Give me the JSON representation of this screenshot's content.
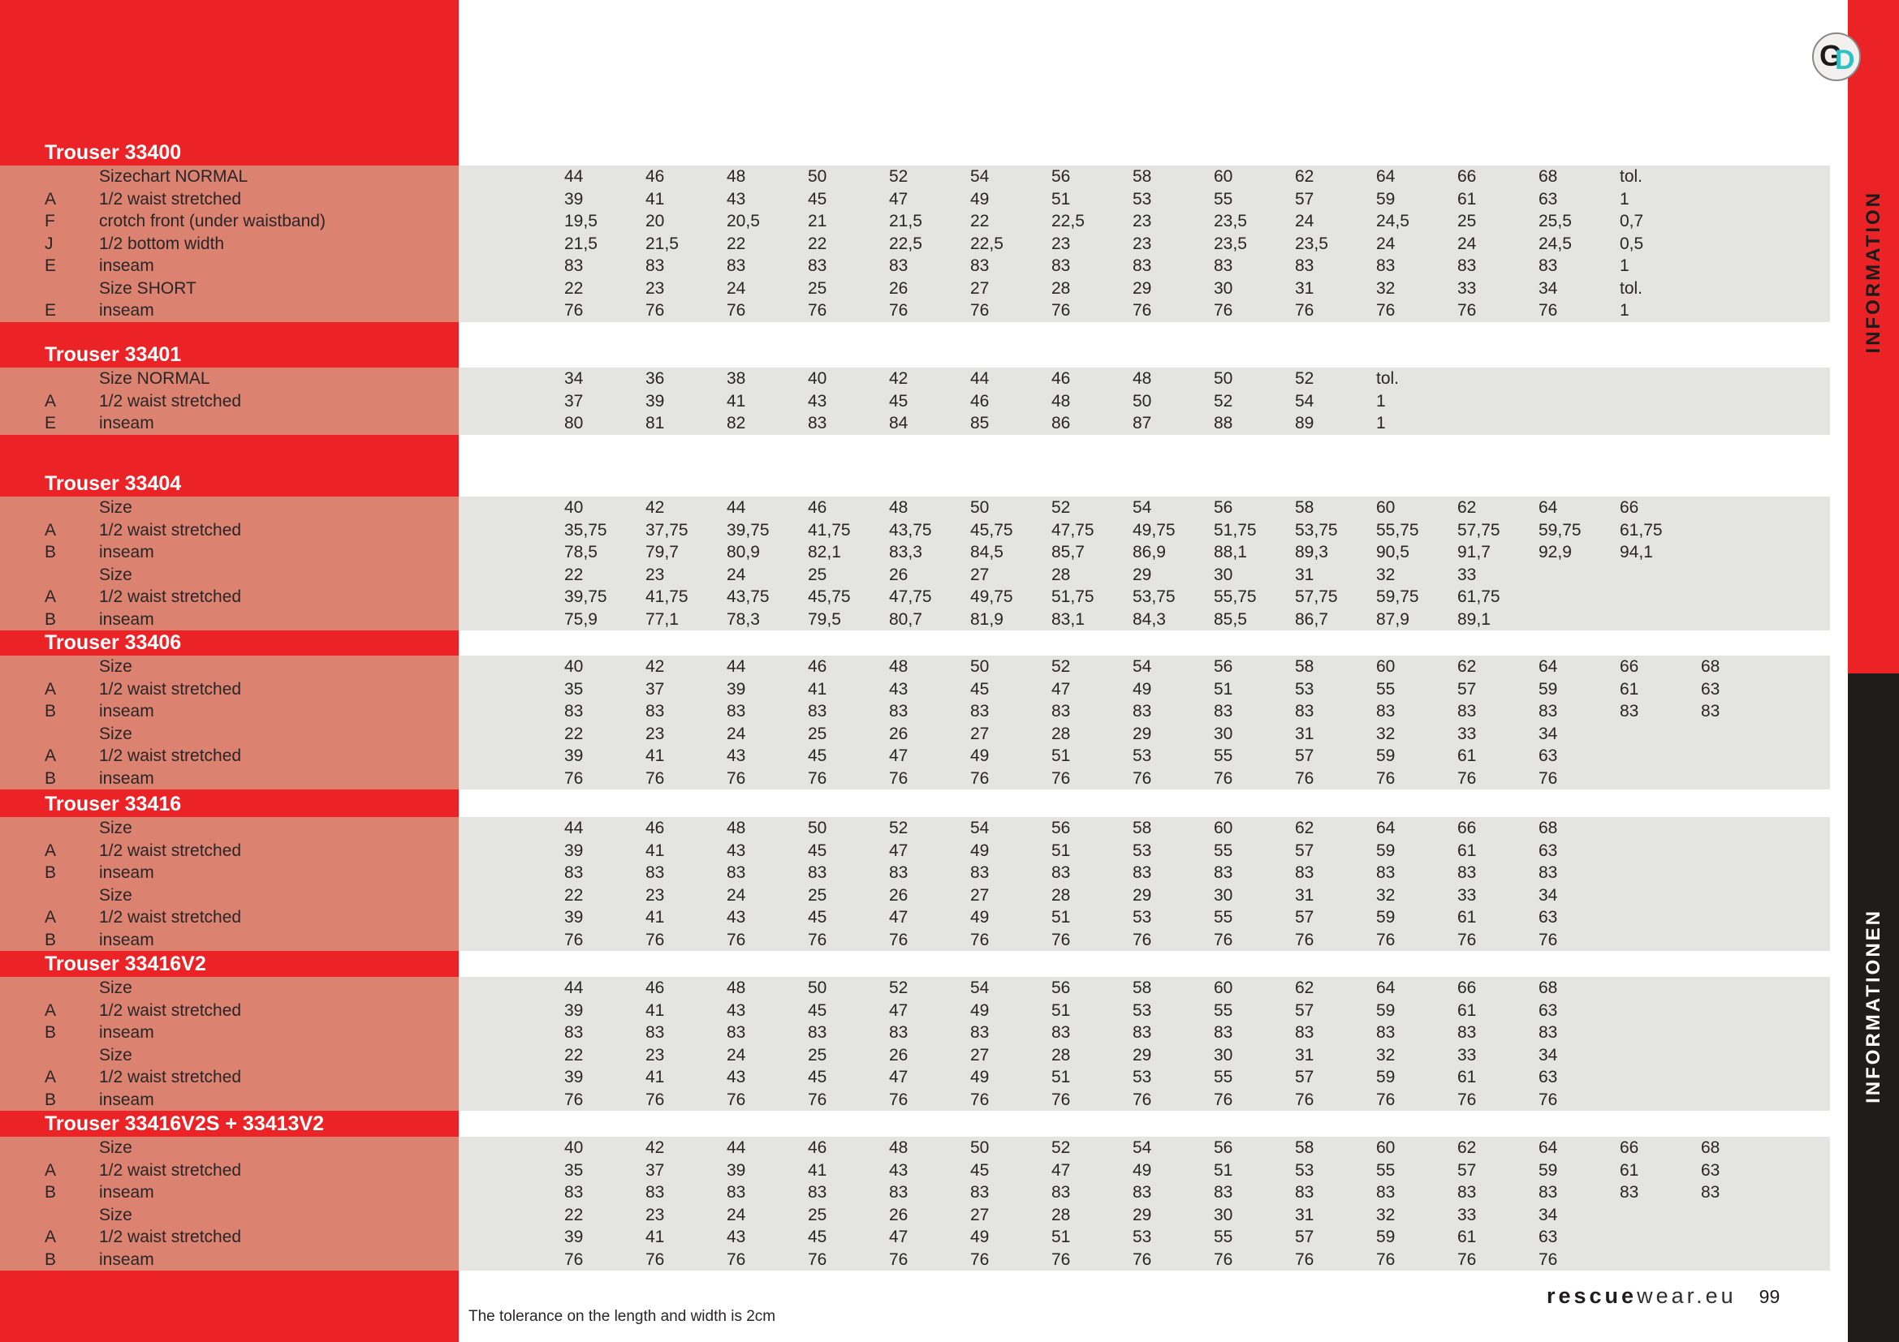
{
  "logo": {
    "letter_g": "G",
    "letter_d": "D"
  },
  "sidebar": {
    "red_label": "INFORMATION",
    "black_label": "INFORMATIONEN"
  },
  "footer": {
    "note": "The tolerance on the length and width is 2cm",
    "brand_bold": "rescue",
    "brand_light": "wear.eu",
    "page_number": "99"
  },
  "colors": {
    "red": "#ec2326",
    "salmon": "#db8271",
    "gray_band": "#e4e4e2",
    "black_bar": "#211c1c",
    "logo_teal": "#2fc2c4"
  },
  "sections": [
    {
      "id": "33400",
      "title": "Trouser 33400",
      "rows": [
        {
          "key": "",
          "label": "Sizechart NORMAL",
          "values": [
            "44",
            "46",
            "48",
            "50",
            "52",
            "54",
            "56",
            "58",
            "60",
            "62",
            "64",
            "66",
            "68",
            "tol."
          ]
        },
        {
          "key": "A",
          "label": "1/2 waist stretched",
          "values": [
            "39",
            "41",
            "43",
            "45",
            "47",
            "49",
            "51",
            "53",
            "55",
            "57",
            "59",
            "61",
            "63",
            "1"
          ]
        },
        {
          "key": "F",
          "label": "crotch front (under waistband)",
          "values": [
            "19,5",
            "20",
            "20,5",
            "21",
            "21,5",
            "22",
            "22,5",
            "23",
            "23,5",
            "24",
            "24,5",
            "25",
            "25,5",
            "0,7"
          ]
        },
        {
          "key": "J",
          "label": "1/2 bottom width",
          "values": [
            "21,5",
            "21,5",
            "22",
            "22",
            "22,5",
            "22,5",
            "23",
            "23",
            "23,5",
            "23,5",
            "24",
            "24",
            "24,5",
            "0,5"
          ]
        },
        {
          "key": "E",
          "label": "inseam",
          "values": [
            "83",
            "83",
            "83",
            "83",
            "83",
            "83",
            "83",
            "83",
            "83",
            "83",
            "83",
            "83",
            "83",
            "1"
          ]
        },
        {
          "key": "",
          "label": "Size SHORT",
          "values": [
            "22",
            "23",
            "24",
            "25",
            "26",
            "27",
            "28",
            "29",
            "30",
            "31",
            "32",
            "33",
            "34",
            "tol."
          ]
        },
        {
          "key": "E",
          "label": "inseam",
          "values": [
            "76",
            "76",
            "76",
            "76",
            "76",
            "76",
            "76",
            "76",
            "76",
            "76",
            "76",
            "76",
            "76",
            "1"
          ]
        }
      ]
    },
    {
      "id": "33401",
      "title": "Trouser 33401",
      "rows": [
        {
          "key": "",
          "label": "Size NORMAL",
          "values": [
            "34",
            "36",
            "38",
            "40",
            "42",
            "44",
            "46",
            "48",
            "50",
            "52",
            "tol."
          ]
        },
        {
          "key": "A",
          "label": "1/2 waist stretched",
          "values": [
            "37",
            "39",
            "41",
            "43",
            "45",
            "46",
            "48",
            "50",
            "52",
            "54",
            "1"
          ]
        },
        {
          "key": "E",
          "label": "inseam",
          "values": [
            "80",
            "81",
            "82",
            "83",
            "84",
            "85",
            "86",
            "87",
            "88",
            "89",
            "1"
          ]
        }
      ]
    },
    {
      "id": "33404",
      "title": "Trouser 33404",
      "rows": [
        {
          "key": "",
          "label": "Size",
          "values": [
            "40",
            "42",
            "44",
            "46",
            "48",
            "50",
            "52",
            "54",
            "56",
            "58",
            "60",
            "62",
            "64",
            "66"
          ]
        },
        {
          "key": "A",
          "label": "1/2 waist stretched",
          "values": [
            "35,75",
            "37,75",
            "39,75",
            "41,75",
            "43,75",
            "45,75",
            "47,75",
            "49,75",
            "51,75",
            "53,75",
            "55,75",
            "57,75",
            "59,75",
            "61,75"
          ]
        },
        {
          "key": "B",
          "label": "inseam",
          "values": [
            "78,5",
            "79,7",
            "80,9",
            "82,1",
            "83,3",
            "84,5",
            "85,7",
            "86,9",
            "88,1",
            "89,3",
            "90,5",
            "91,7",
            "92,9",
            "94,1"
          ]
        },
        {
          "key": "",
          "label": "Size",
          "values": [
            "22",
            "23",
            "24",
            "25",
            "26",
            "27",
            "28",
            "29",
            "30",
            "31",
            "32",
            "33"
          ]
        },
        {
          "key": "A",
          "label": "1/2 waist stretched",
          "values": [
            "39,75",
            "41,75",
            "43,75",
            "45,75",
            "47,75",
            "49,75",
            "51,75",
            "53,75",
            "55,75",
            "57,75",
            "59,75",
            "61,75"
          ]
        },
        {
          "key": "B",
          "label": "inseam",
          "values": [
            "75,9",
            "77,1",
            "78,3",
            "79,5",
            "80,7",
            "81,9",
            "83,1",
            "84,3",
            "85,5",
            "86,7",
            "87,9",
            "89,1"
          ]
        }
      ]
    },
    {
      "id": "33406",
      "title": "Trouser 33406",
      "rows": [
        {
          "key": "",
          "label": "Size",
          "values": [
            "40",
            "42",
            "44",
            "46",
            "48",
            "50",
            "52",
            "54",
            "56",
            "58",
            "60",
            "62",
            "64",
            "66",
            "68"
          ]
        },
        {
          "key": "A",
          "label": "1/2 waist stretched",
          "values": [
            "35",
            "37",
            "39",
            "41",
            "43",
            "45",
            "47",
            "49",
            "51",
            "53",
            "55",
            "57",
            "59",
            "61",
            "63"
          ]
        },
        {
          "key": "B",
          "label": "inseam",
          "values": [
            "83",
            "83",
            "83",
            "83",
            "83",
            "83",
            "83",
            "83",
            "83",
            "83",
            "83",
            "83",
            "83",
            "83",
            "83"
          ]
        },
        {
          "key": "",
          "label": "Size",
          "values": [
            "22",
            "23",
            "24",
            "25",
            "26",
            "27",
            "28",
            "29",
            "30",
            "31",
            "32",
            "33",
            "34"
          ]
        },
        {
          "key": "A",
          "label": "1/2 waist stretched",
          "values": [
            "39",
            "41",
            "43",
            "45",
            "47",
            "49",
            "51",
            "53",
            "55",
            "57",
            "59",
            "61",
            "63"
          ]
        },
        {
          "key": "B",
          "label": "inseam",
          "values": [
            "76",
            "76",
            "76",
            "76",
            "76",
            "76",
            "76",
            "76",
            "76",
            "76",
            "76",
            "76",
            "76"
          ]
        }
      ]
    },
    {
      "id": "33416",
      "title": "Trouser 33416",
      "rows": [
        {
          "key": "",
          "label": "Size",
          "values": [
            "44",
            "46",
            "48",
            "50",
            "52",
            "54",
            "56",
            "58",
            "60",
            "62",
            "64",
            "66",
            "68"
          ]
        },
        {
          "key": "A",
          "label": "1/2 waist stretched",
          "values": [
            "39",
            "41",
            "43",
            "45",
            "47",
            "49",
            "51",
            "53",
            "55",
            "57",
            "59",
            "61",
            "63"
          ]
        },
        {
          "key": "B",
          "label": "inseam",
          "values": [
            "83",
            "83",
            "83",
            "83",
            "83",
            "83",
            "83",
            "83",
            "83",
            "83",
            "83",
            "83",
            "83"
          ]
        },
        {
          "key": "",
          "label": "Size",
          "values": [
            "22",
            "23",
            "24",
            "25",
            "26",
            "27",
            "28",
            "29",
            "30",
            "31",
            "32",
            "33",
            "34"
          ]
        },
        {
          "key": "A",
          "label": "1/2 waist stretched",
          "values": [
            "39",
            "41",
            "43",
            "45",
            "47",
            "49",
            "51",
            "53",
            "55",
            "57",
            "59",
            "61",
            "63"
          ]
        },
        {
          "key": "B",
          "label": "inseam",
          "values": [
            "76",
            "76",
            "76",
            "76",
            "76",
            "76",
            "76",
            "76",
            "76",
            "76",
            "76",
            "76",
            "76"
          ]
        }
      ]
    },
    {
      "id": "33416V2",
      "title": "Trouser 33416V2",
      "rows": [
        {
          "key": "",
          "label": "Size",
          "values": [
            "44",
            "46",
            "48",
            "50",
            "52",
            "54",
            "56",
            "58",
            "60",
            "62",
            "64",
            "66",
            "68"
          ]
        },
        {
          "key": "A",
          "label": "1/2 waist stretched",
          "values": [
            "39",
            "41",
            "43",
            "45",
            "47",
            "49",
            "51",
            "53",
            "55",
            "57",
            "59",
            "61",
            "63"
          ]
        },
        {
          "key": "B",
          "label": "inseam",
          "values": [
            "83",
            "83",
            "83",
            "83",
            "83",
            "83",
            "83",
            "83",
            "83",
            "83",
            "83",
            "83",
            "83"
          ]
        },
        {
          "key": "",
          "label": "Size",
          "values": [
            "22",
            "23",
            "24",
            "25",
            "26",
            "27",
            "28",
            "29",
            "30",
            "31",
            "32",
            "33",
            "34"
          ]
        },
        {
          "key": "A",
          "label": "1/2 waist stretched",
          "values": [
            "39",
            "41",
            "43",
            "45",
            "47",
            "49",
            "51",
            "53",
            "55",
            "57",
            "59",
            "61",
            "63"
          ]
        },
        {
          "key": "B",
          "label": "inseam",
          "values": [
            "76",
            "76",
            "76",
            "76",
            "76",
            "76",
            "76",
            "76",
            "76",
            "76",
            "76",
            "76",
            "76"
          ]
        }
      ]
    },
    {
      "id": "33416V2S",
      "title": "Trouser 33416V2S + 33413V2",
      "rows": [
        {
          "key": "",
          "label": "Size",
          "values": [
            "40",
            "42",
            "44",
            "46",
            "48",
            "50",
            "52",
            "54",
            "56",
            "58",
            "60",
            "62",
            "64",
            "66",
            "68"
          ]
        },
        {
          "key": "A",
          "label": "1/2 waist stretched",
          "values": [
            "35",
            "37",
            "39",
            "41",
            "43",
            "45",
            "47",
            "49",
            "51",
            "53",
            "55",
            "57",
            "59",
            "61",
            "63"
          ]
        },
        {
          "key": "B",
          "label": "inseam",
          "values": [
            "83",
            "83",
            "83",
            "83",
            "83",
            "83",
            "83",
            "83",
            "83",
            "83",
            "83",
            "83",
            "83",
            "83",
            "83"
          ]
        },
        {
          "key": "",
          "label": "Size",
          "values": [
            "22",
            "23",
            "24",
            "25",
            "26",
            "27",
            "28",
            "29",
            "30",
            "31",
            "32",
            "33",
            "34"
          ]
        },
        {
          "key": "A",
          "label": "1/2 waist stretched",
          "values": [
            "39",
            "41",
            "43",
            "45",
            "47",
            "49",
            "51",
            "53",
            "55",
            "57",
            "59",
            "61",
            "63"
          ]
        },
        {
          "key": "B",
          "label": "inseam",
          "values": [
            "76",
            "76",
            "76",
            "76",
            "76",
            "76",
            "76",
            "76",
            "76",
            "76",
            "76",
            "76",
            "76"
          ]
        }
      ]
    }
  ]
}
